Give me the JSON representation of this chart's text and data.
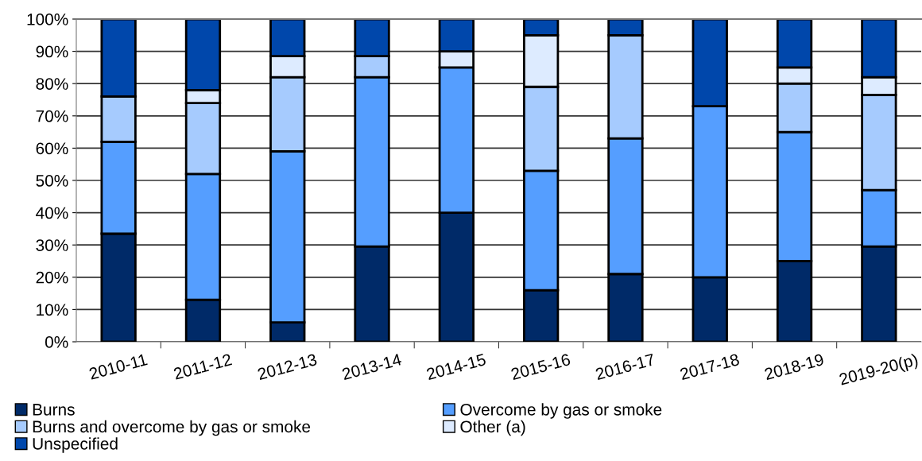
{
  "chart_data": {
    "type": "bar",
    "stacked": true,
    "categories": [
      "2010-11",
      "2011-12",
      "2012-13",
      "2013-14",
      "2014-15",
      "2015-16",
      "2016-17",
      "2017-18",
      "2018-19",
      "2019-20(p)"
    ],
    "series": [
      {
        "name": "Burns",
        "color": "#002a68",
        "values": [
          33.5,
          13,
          6,
          29.5,
          40,
          16,
          21,
          20,
          25,
          29.5
        ]
      },
      {
        "name": "Overcome by gas or smoke",
        "color": "#559eff",
        "values": [
          28.5,
          39,
          53,
          52.5,
          45,
          37,
          42,
          53,
          40,
          17.5
        ]
      },
      {
        "name": "Burns and overcome by gas or smoke",
        "color": "#a6cbfe",
        "values": [
          14,
          22,
          23,
          6.5,
          0,
          26,
          32,
          0,
          15,
          29.5
        ]
      },
      {
        "name": "Other (a)",
        "color": "#ddebff",
        "values": [
          0,
          4,
          6.5,
          0,
          5,
          16,
          0,
          0,
          5,
          5.5
        ]
      },
      {
        "name": "Unspecified",
        "color": "#0047ab",
        "values": [
          24,
          22,
          11.5,
          11.5,
          10,
          5,
          5,
          27,
          15,
          18
        ]
      }
    ],
    "ylim": [
      0,
      100
    ],
    "yticks": [
      {
        "value": 0,
        "label": "0%"
      },
      {
        "value": 10,
        "label": "10%"
      },
      {
        "value": 20,
        "label": "20%"
      },
      {
        "value": 30,
        "label": "30%"
      },
      {
        "value": 40,
        "label": "40%"
      },
      {
        "value": 50,
        "label": "50%"
      },
      {
        "value": 60,
        "label": "60%"
      },
      {
        "value": 70,
        "label": "70%"
      },
      {
        "value": 80,
        "label": "80%"
      },
      {
        "value": 90,
        "label": "90%"
      },
      {
        "value": 100,
        "label": "100%"
      }
    ],
    "grid": "y",
    "legend": "bottom"
  }
}
